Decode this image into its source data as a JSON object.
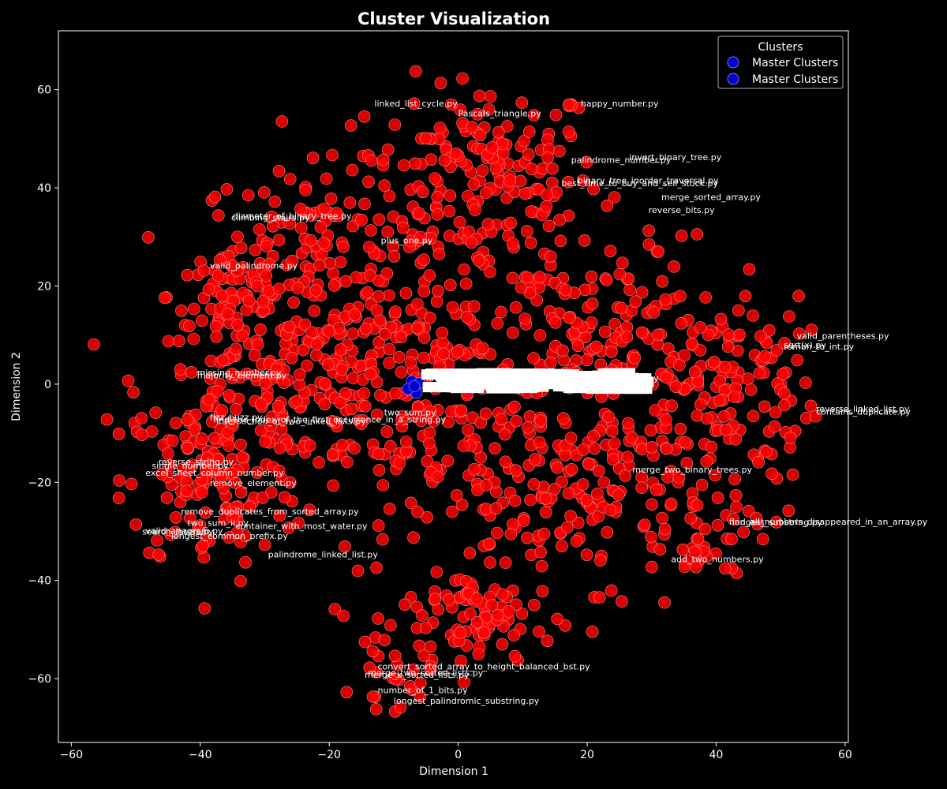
{
  "chart_data": {
    "type": "scatter",
    "title": "Cluster Visualization",
    "xlabel": "Dimension 1",
    "ylabel": "Dimension 2",
    "xlim": [
      -62,
      60.5
    ],
    "ylim": [
      -73,
      72
    ],
    "xticks": [
      -60,
      -40,
      -20,
      0,
      20,
      40,
      60
    ],
    "yticks": [
      -60,
      -40,
      -20,
      0,
      20,
      40,
      60
    ],
    "grid": false,
    "background": "#000000",
    "legend": {
      "title": "Clusters",
      "placement": "top-right",
      "entries": [
        "Master Clusters",
        "Master Clusters"
      ]
    },
    "colors": {
      "point_fill": "#ff0000",
      "point_edge": "#ff8080",
      "master_fill": "#0000cc",
      "master_edge": "#7777ff",
      "text": "#ffffff"
    },
    "series": [
      {
        "name": "Master Clusters",
        "points": [
          [
            -7.2,
            0.6
          ],
          [
            -6.5,
            -1.8
          ],
          [
            -7.8,
            -1.0
          ],
          [
            -6.0,
            0.2
          ],
          [
            -6.8,
            -0.4
          ]
        ]
      }
    ],
    "labels": [
      {
        "text": "linked_list_cycle.py",
        "x": -13,
        "y": 57.2
      },
      {
        "text": "happy_number.py",
        "x": 19,
        "y": 57.2
      },
      {
        "text": "Pascals_triangle.py",
        "x": 0,
        "y": 55.2
      },
      {
        "text": "invert_binary_tree.py",
        "x": 26.5,
        "y": 46.3
      },
      {
        "text": "palindrome_number.py",
        "x": 17.5,
        "y": 45.7
      },
      {
        "text": "binary_tree_inorder_traversal.py",
        "x": 18.5,
        "y": 41.5
      },
      {
        "text": "best_time_to_buy_and_sell_stock.py",
        "x": 16,
        "y": 41.0
      },
      {
        "text": "merge_sorted_array.py",
        "x": 31.5,
        "y": 38.2
      },
      {
        "text": "reverse_bits.py",
        "x": 29.5,
        "y": 35.5
      },
      {
        "text": "diameter_of_binary_tree.py",
        "x": -35,
        "y": 34.3
      },
      {
        "text": "climbing_stairs.py",
        "x": -35.2,
        "y": 34.0
      },
      {
        "text": "plus_one.py",
        "x": -12,
        "y": 29.3
      },
      {
        "text": "valid_palindrome.py",
        "x": -38.5,
        "y": 24.2
      },
      {
        "text": "valid_parentheses.py",
        "x": 52.5,
        "y": 9.9
      },
      {
        "text": "sqrt(x).py",
        "x": 50.5,
        "y": 8.0
      },
      {
        "text": "roman_to_int.py",
        "x": 50.5,
        "y": 7.7
      },
      {
        "text": "missing_number.py",
        "x": -40.5,
        "y": 2.4
      },
      {
        "text": "majority_element.py",
        "x": -40.5,
        "y": 1.8
      },
      {
        "text": "find_the_index_of_the_first_occurrence_in_a_string.py",
        "x": -5,
        "y": 1.3
      },
      {
        "text": "reverse_linked_list.py",
        "x": 55.5,
        "y": -5.0
      },
      {
        "text": "contains_duplicate.py",
        "x": 55.5,
        "y": -5.6
      },
      {
        "text": "two_sum.py",
        "x": -11.5,
        "y": -5.7
      },
      {
        "text": "fizz_buzz.py",
        "x": -38.5,
        "y": -6.7
      },
      {
        "text": "find_the_index_of_the_first_occurrence_in_a_string.py",
        "x": -38,
        "y": -7.2
      },
      {
        "text": "intersection_of_two_linked_lists.py",
        "x": -37.5,
        "y": -7.5
      },
      {
        "text": "reverse_string.py",
        "x": -46.5,
        "y": -15.8
      },
      {
        "text": "single_number.py",
        "x": -47.5,
        "y": -16.6
      },
      {
        "text": "excel_sheet_column_number.py",
        "x": -48.5,
        "y": -18.0
      },
      {
        "text": "merge_two_binary_trees.py",
        "x": 27,
        "y": -17.4
      },
      {
        "text": "remove_element.py",
        "x": -38.5,
        "y": -20.1
      },
      {
        "text": "remove_duplicates_from_sorted_array.py",
        "x": -43,
        "y": -25.9
      },
      {
        "text": "find_all_numbers_disappeared_in_an_array.py",
        "x": 42,
        "y": -28.0
      },
      {
        "text": "longest_substring.py",
        "x": 42.5,
        "y": -28.1
      },
      {
        "text": "two_sum_ii.py",
        "x": -42,
        "y": -28.2
      },
      {
        "text": "container_with_most_water.py",
        "x": -34.5,
        "y": -28.9
      },
      {
        "text": "valid_anagram.py",
        "x": -48.5,
        "y": -29.8
      },
      {
        "text": "search_insert.py",
        "x": -49,
        "y": -30.0
      },
      {
        "text": "longest_common_prefix.py",
        "x": -44.5,
        "y": -30.9
      },
      {
        "text": "palindrome_linked_list.py",
        "x": -29.5,
        "y": -34.7
      },
      {
        "text": "add_two_numbers.py",
        "x": 33,
        "y": -35.6
      },
      {
        "text": "convert_sorted_array_to_height_balanced_bst.py",
        "x": -12.5,
        "y": -57.5
      },
      {
        "text": "merge_two_sorted_lists.py",
        "x": -14,
        "y": -58.8
      },
      {
        "text": "merge_k_sorted_lists.py",
        "x": -14.5,
        "y": -59.2
      },
      {
        "text": "number_of_1_bits.py",
        "x": -12.5,
        "y": -62.3
      },
      {
        "text": "longest_palindromic_substring.py",
        "x": -10,
        "y": -64.5
      }
    ]
  }
}
